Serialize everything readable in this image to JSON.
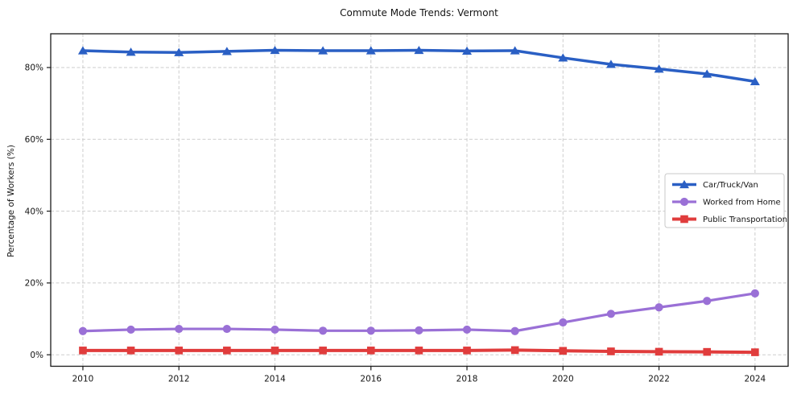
{
  "chart_data": {
    "type": "line",
    "title": "Commute Mode Trends: Vermont",
    "xlabel": "",
    "ylabel": "Percentage of Workers (%)",
    "x": [
      2010,
      2011,
      2012,
      2013,
      2014,
      2015,
      2016,
      2017,
      2018,
      2019,
      2020,
      2021,
      2022,
      2023,
      2024
    ],
    "series": [
      {
        "name": "Car/Truck/Van",
        "marker": "triangle",
        "color": "#2a5fc4",
        "values": [
          84.7,
          84.3,
          84.2,
          84.5,
          84.8,
          84.7,
          84.7,
          84.8,
          84.6,
          84.7,
          82.7,
          80.9,
          79.6,
          78.2,
          76.1
        ]
      },
      {
        "name": "Worked from Home",
        "marker": "circle",
        "color": "#9a70d6",
        "values": [
          6.6,
          7.0,
          7.2,
          7.2,
          7.0,
          6.7,
          6.7,
          6.8,
          7.0,
          6.6,
          9.0,
          11.4,
          13.2,
          15.0,
          17.1
        ]
      },
      {
        "name": "Public Transportation",
        "marker": "square",
        "color": "#e03c3c",
        "values": [
          1.2,
          1.2,
          1.2,
          1.2,
          1.2,
          1.2,
          1.2,
          1.2,
          1.2,
          1.3,
          1.1,
          0.95,
          0.85,
          0.8,
          0.7
        ]
      }
    ],
    "xticks": [
      2010,
      2012,
      2014,
      2016,
      2018,
      2020,
      2022,
      2024
    ],
    "yticks": [
      0,
      20,
      40,
      60,
      80
    ],
    "ytick_suffix": "%",
    "xlim": [
      2009.33,
      2024.69
    ],
    "ylim": [
      -3.2,
      89.4
    ],
    "grid": true,
    "grid_style": "dashed",
    "grid_color": "#cdcdcd",
    "spine_color": "#1a1a1a",
    "legend_position": "center-right",
    "legend_labels": [
      "Car/Truck/Van",
      "Worked from Home",
      "Public Transportation"
    ]
  }
}
